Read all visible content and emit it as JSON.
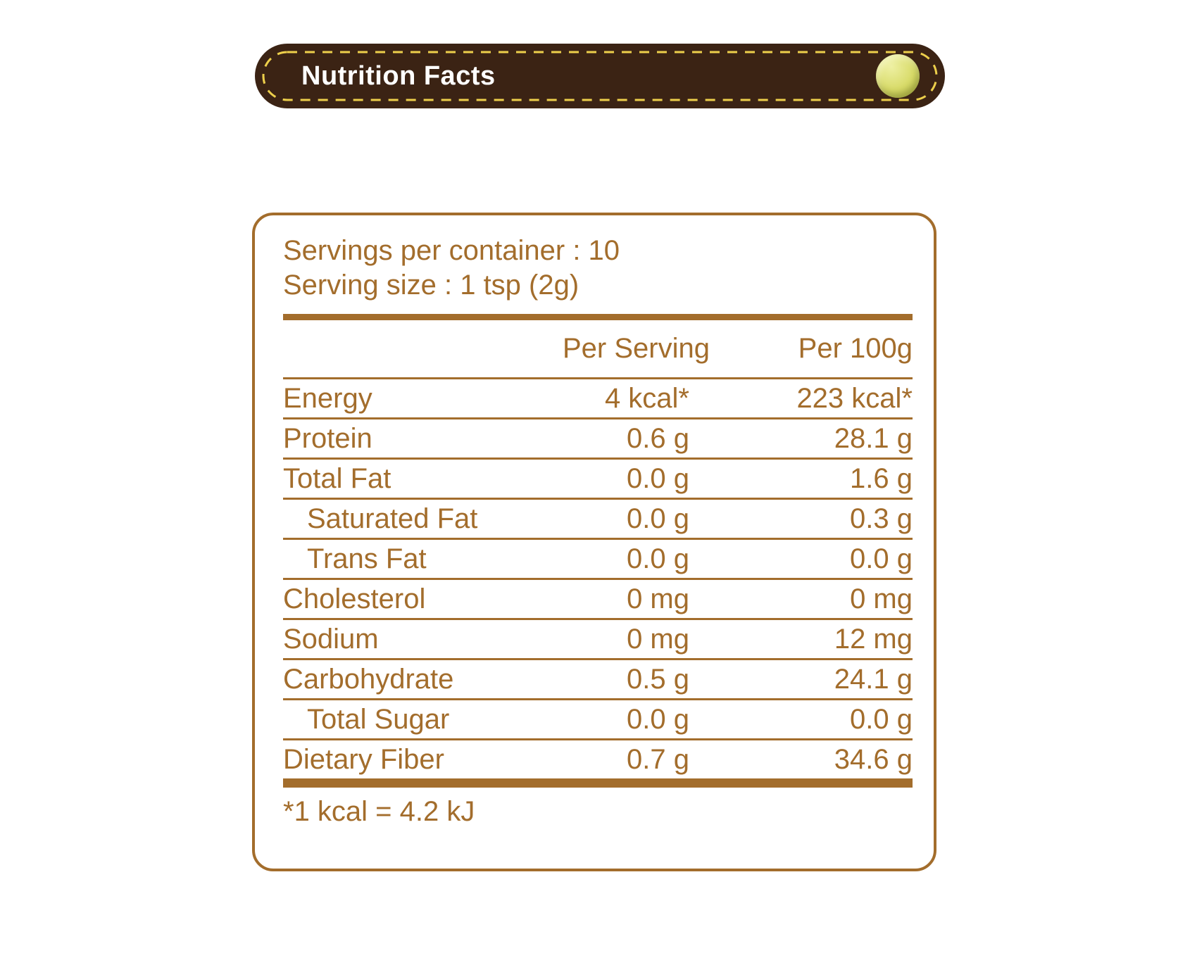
{
  "banner": {
    "title": "Nutrition Facts"
  },
  "card": {
    "servings_line": "Servings per container : 10",
    "serving_size_line": "Serving size : 1 tsp (2g)",
    "columns": {
      "per_serving": "Per Serving",
      "per_100g": "Per 100g"
    },
    "rows": [
      {
        "label": "Energy",
        "per_serving": "4 kcal*",
        "per_100g": "223 kcal*",
        "indent": false
      },
      {
        "label": "Protein",
        "per_serving": "0.6 g",
        "per_100g": "28.1 g",
        "indent": false
      },
      {
        "label": "Total Fat",
        "per_serving": "0.0 g",
        "per_100g": "1.6 g",
        "indent": false
      },
      {
        "label": "Saturated Fat",
        "per_serving": "0.0 g",
        "per_100g": "0.3 g",
        "indent": true
      },
      {
        "label": "Trans Fat",
        "per_serving": "0.0 g",
        "per_100g": "0.0 g",
        "indent": true
      },
      {
        "label": "Cholesterol",
        "per_serving": "0 mg",
        "per_100g": "0 mg",
        "indent": false
      },
      {
        "label": "Sodium",
        "per_serving": "0 mg",
        "per_100g": "12 mg",
        "indent": false
      },
      {
        "label": "Carbohydrate",
        "per_serving": "0.5 g",
        "per_100g": "24.1 g",
        "indent": false
      },
      {
        "label": "Total Sugar",
        "per_serving": "0.0 g",
        "per_100g": "0.0 g",
        "indent": true
      },
      {
        "label": "Dietary Fiber",
        "per_serving": "0.7 g",
        "per_100g": "34.6 g",
        "indent": false
      }
    ],
    "footnote": "*1 kcal = 4.2 kJ"
  },
  "colors": {
    "accent": "#A36D2C",
    "banner_bg": "#3B2314",
    "dash_yellow": "#EDCF4B",
    "circle_main": "#D8DB69",
    "circle_light": "#EEF0A3",
    "circle_dark": "#B4B94B",
    "title_color": "#FFFFFF",
    "page_bg": "#FFFFFF"
  }
}
